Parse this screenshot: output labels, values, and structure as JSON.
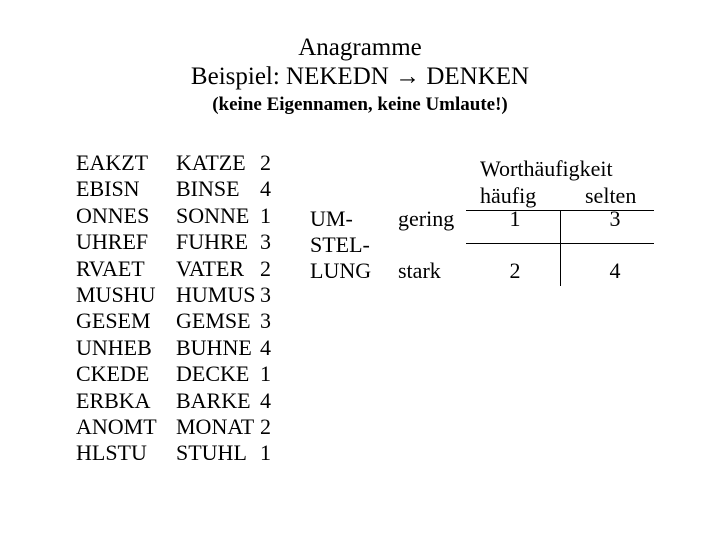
{
  "title": {
    "line1": "Anagramme",
    "line2_prefix": "Beispiel: NEKEDN ",
    "line2_arrow": "→",
    "line2_suffix": " DENKEN",
    "subtitle": "(keine Eigennamen, keine Umlaute!)"
  },
  "anagrams": {
    "rows": [
      {
        "scr": "EAKZT",
        "sol": "KATZE",
        "num": "2"
      },
      {
        "scr": "EBISN",
        "sol": "BINSE",
        "num": "4"
      },
      {
        "scr": "ONNES",
        "sol": "SONNE",
        "num": "1"
      },
      {
        "scr": "UHREF",
        "sol": "FUHRE",
        "num": "3"
      },
      {
        "scr": "RVAET",
        "sol": "VATER",
        "num": "2"
      },
      {
        "scr": "MUSHU",
        "sol": "HUMUS",
        "num": "3"
      },
      {
        "scr": "GESEM",
        "sol": "GEMSE",
        "num": "3"
      },
      {
        "scr": "UNHEB",
        "sol": "BUHNE",
        "num": "4"
      },
      {
        "scr": "CKEDE",
        "sol": "DECKE",
        "num": "1"
      },
      {
        "scr": "ERBKA",
        "sol": "BARKE",
        "num": "4"
      },
      {
        "scr": "ANOMT",
        "sol": "MONAT",
        "num": "2"
      },
      {
        "scr": "HLSTU",
        "sol": "STUHL",
        "num": "1"
      }
    ]
  },
  "matrix": {
    "title": "Worthäufigkeit",
    "col_left": "häufig",
    "col_right": "selten",
    "row_label_line1": "UM-",
    "row_label_line2": "STEL-",
    "row_label_line3": "LUNG",
    "row_top": "gering",
    "row_bottom": "stark",
    "cells": {
      "c1": "1",
      "c2": "2",
      "c3": "3",
      "c4": "4"
    }
  },
  "style": {
    "font_family": "Times New Roman",
    "text_color": "#000000",
    "background_color": "#ffffff",
    "title_fontsize_pt": 19,
    "body_fontsize_pt": 17,
    "sub_fontsize_pt": 14
  }
}
